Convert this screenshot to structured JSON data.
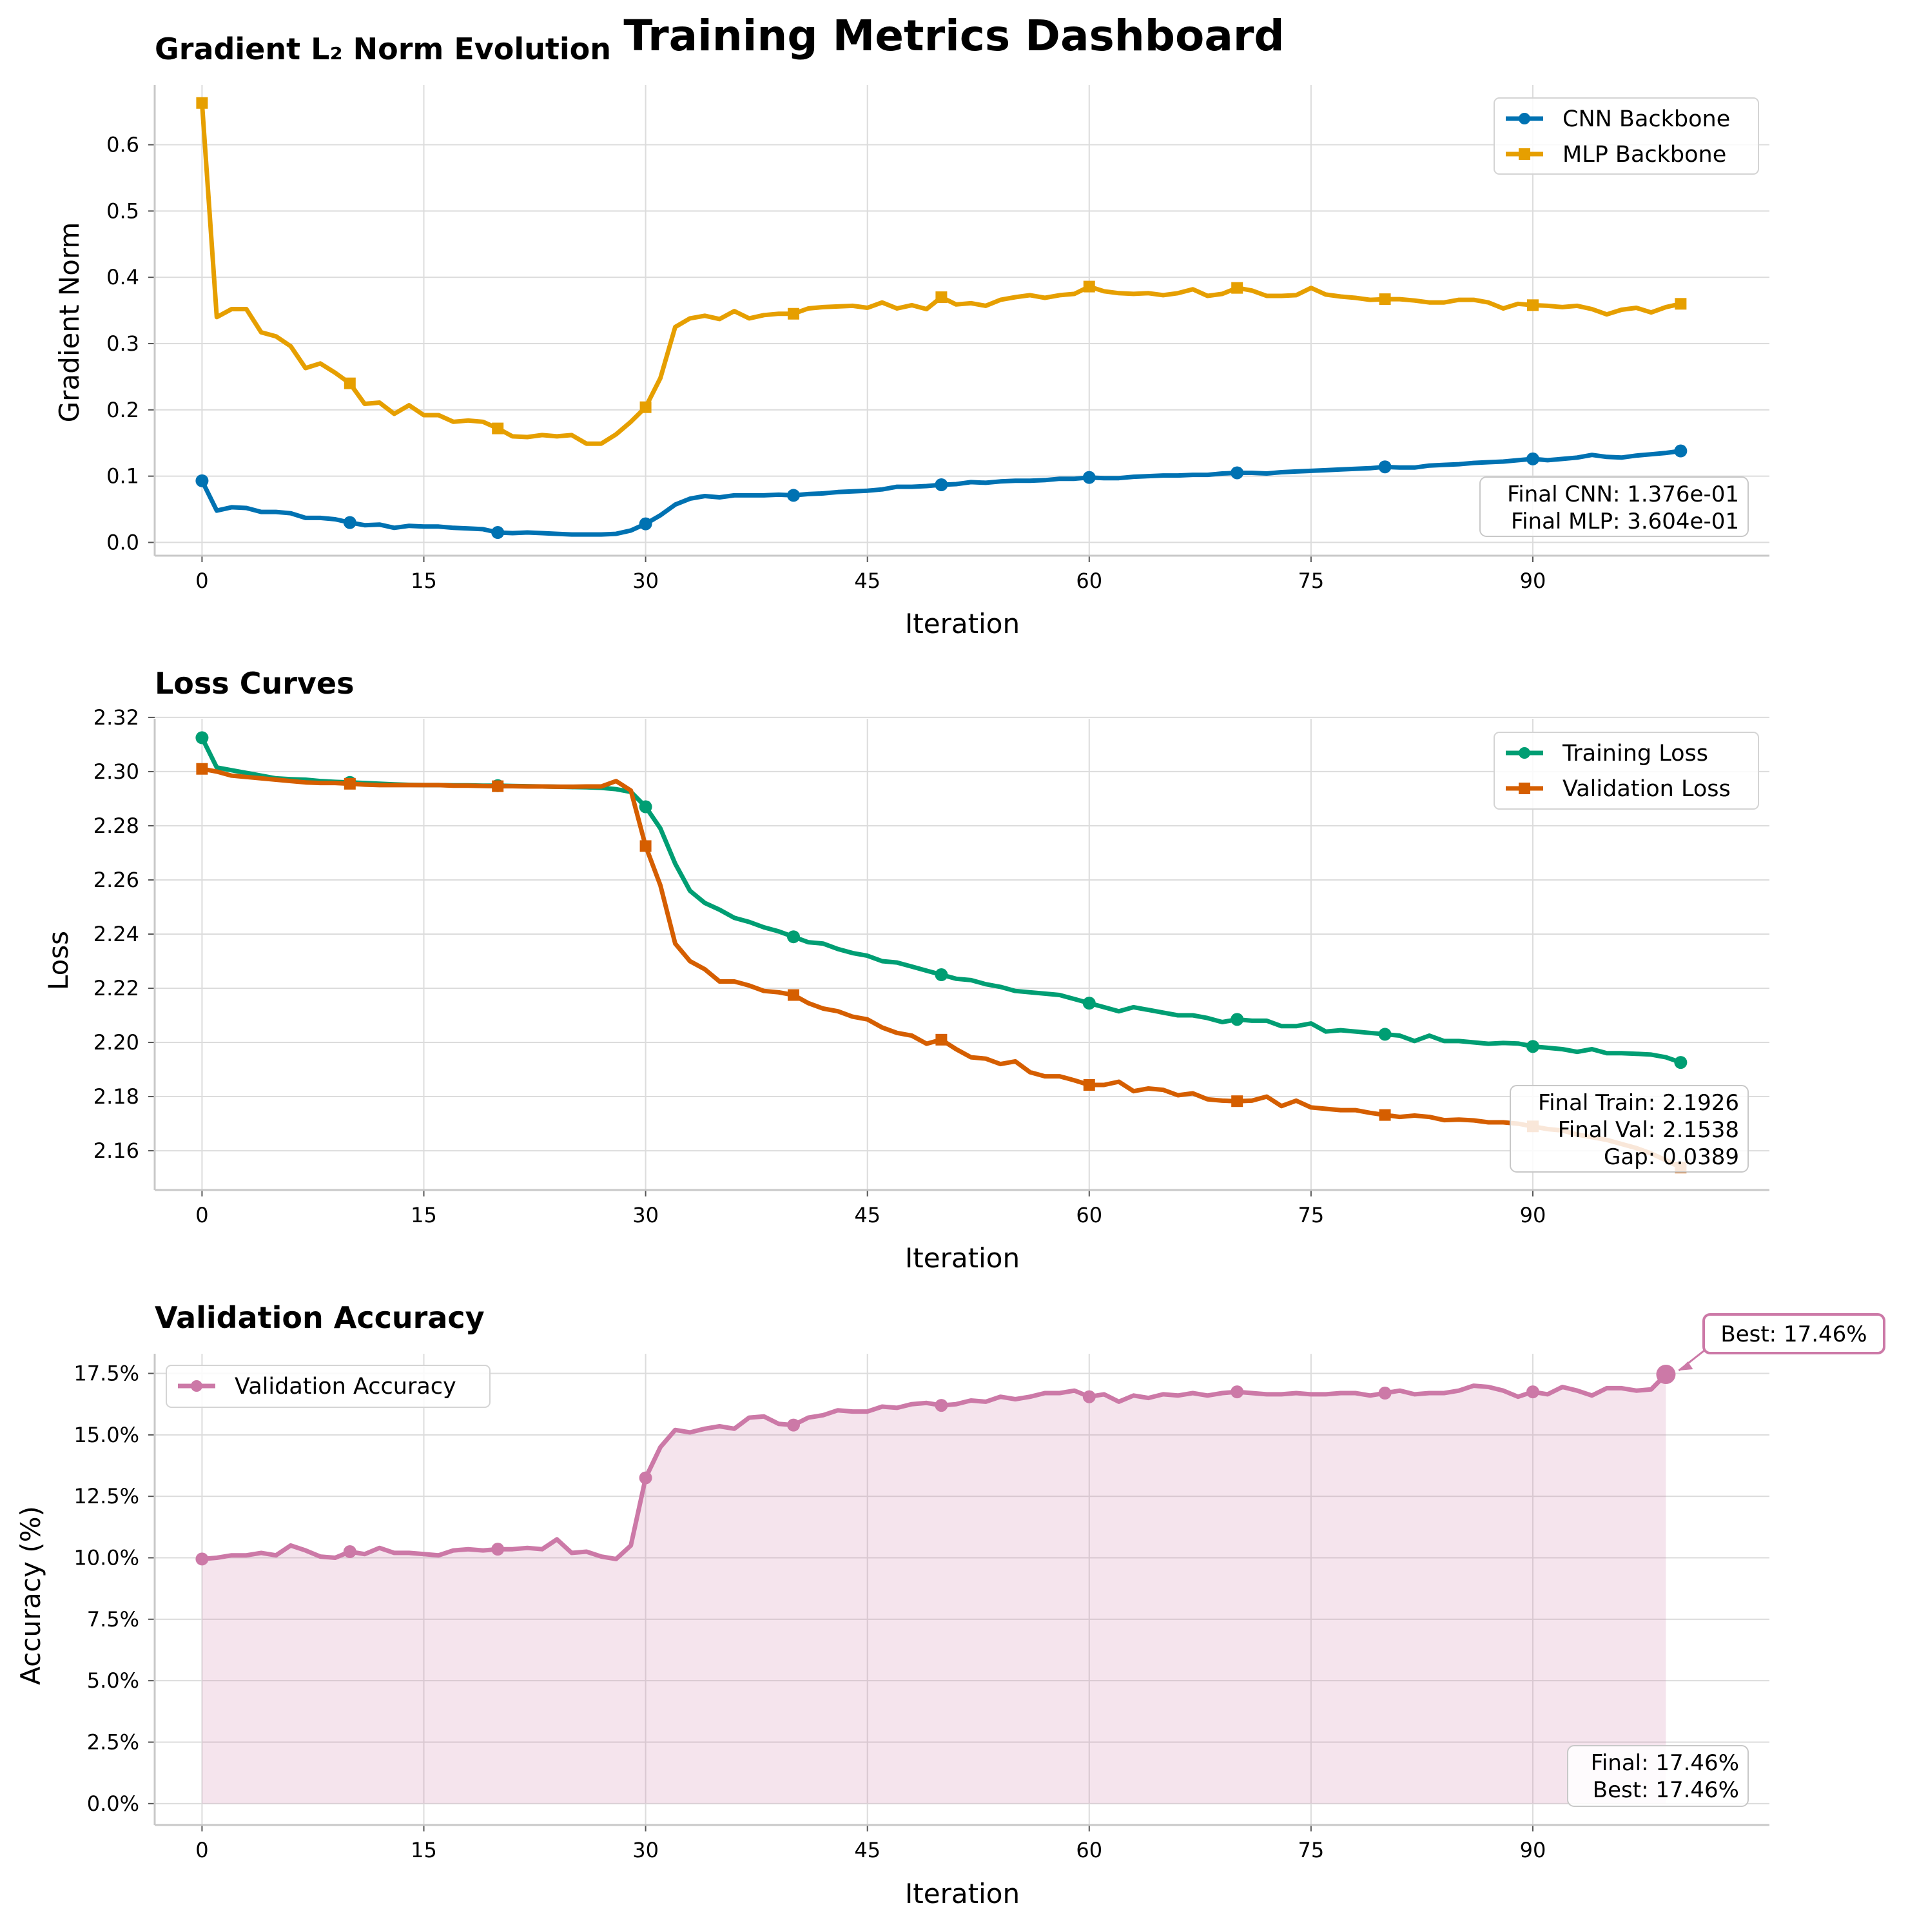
{
  "suptitle": "Training Metrics Dashboard",
  "chart_data": [
    {
      "type": "line",
      "title": "Gradient L₂ Norm Evolution",
      "xlabel": "Iteration",
      "ylabel": "Gradient Norm",
      "xlim": [
        -3.2,
        106
      ],
      "ylim": [
        -0.02,
        0.69
      ],
      "xticks": [
        0,
        15,
        30,
        45,
        60,
        75,
        90
      ],
      "xtick_labels": [
        "0",
        "15",
        "30",
        "45",
        "60",
        "75",
        "90"
      ],
      "yticks": [
        0.0,
        0.1,
        0.2,
        0.3,
        0.4,
        0.5,
        0.6
      ],
      "ytick_labels": [
        "0.0",
        "0.1",
        "0.2",
        "0.3",
        "0.4",
        "0.5",
        "0.6"
      ],
      "grid": true,
      "legend": "upper right",
      "series": [
        {
          "name": "CNN Backbone",
          "color": "#0072b2",
          "marker": "circle",
          "marker_every": 10,
          "values": [
            0.093,
            0.048,
            0.053,
            0.052,
            0.046,
            0.046,
            0.044,
            0.037,
            0.037,
            0.035,
            0.03,
            0.026,
            0.027,
            0.022,
            0.025,
            0.024,
            0.024,
            0.022,
            0.021,
            0.02,
            0.015,
            0.014,
            0.015,
            0.014,
            0.013,
            0.012,
            0.012,
            0.012,
            0.013,
            0.018,
            0.028,
            0.041,
            0.057,
            0.066,
            0.07,
            0.068,
            0.071,
            0.071,
            0.071,
            0.072,
            0.071,
            0.073,
            0.074,
            0.076,
            0.077,
            0.078,
            0.08,
            0.084,
            0.084,
            0.085,
            0.087,
            0.088,
            0.091,
            0.09,
            0.092,
            0.093,
            0.093,
            0.094,
            0.096,
            0.096,
            0.098,
            0.097,
            0.097,
            0.099,
            0.1,
            0.101,
            0.101,
            0.102,
            0.102,
            0.104,
            0.105,
            0.105,
            0.104,
            0.106,
            0.107,
            0.108,
            0.109,
            0.11,
            0.111,
            0.112,
            0.114,
            0.113,
            0.113,
            0.116,
            0.117,
            0.118,
            0.12,
            0.121,
            0.122,
            0.124,
            0.126,
            0.124,
            0.126,
            0.128,
            0.132,
            0.129,
            0.128,
            0.131,
            0.133,
            0.135,
            0.138
          ]
        },
        {
          "name": "MLP Backbone",
          "color": "#e69f00",
          "marker": "square",
          "marker_every": 10,
          "values": [
            0.663,
            0.34,
            0.352,
            0.352,
            0.317,
            0.311,
            0.296,
            0.263,
            0.27,
            0.256,
            0.24,
            0.209,
            0.211,
            0.194,
            0.207,
            0.192,
            0.192,
            0.182,
            0.184,
            0.182,
            0.172,
            0.16,
            0.159,
            0.162,
            0.16,
            0.162,
            0.149,
            0.149,
            0.163,
            0.182,
            0.204,
            0.248,
            0.325,
            0.338,
            0.342,
            0.337,
            0.349,
            0.338,
            0.343,
            0.345,
            0.345,
            0.353,
            0.355,
            0.356,
            0.357,
            0.354,
            0.362,
            0.353,
            0.358,
            0.352,
            0.37,
            0.359,
            0.361,
            0.357,
            0.366,
            0.37,
            0.373,
            0.369,
            0.373,
            0.375,
            0.386,
            0.379,
            0.376,
            0.375,
            0.376,
            0.373,
            0.376,
            0.382,
            0.372,
            0.375,
            0.384,
            0.38,
            0.372,
            0.372,
            0.373,
            0.384,
            0.374,
            0.371,
            0.369,
            0.366,
            0.367,
            0.367,
            0.365,
            0.362,
            0.362,
            0.366,
            0.366,
            0.362,
            0.353,
            0.36,
            0.358,
            0.357,
            0.355,
            0.357,
            0.352,
            0.344,
            0.351,
            0.354,
            0.347,
            0.355,
            0.36
          ]
        }
      ],
      "annotation": [
        "Final CNN: 1.376e-01",
        "Final MLP: 3.604e-01"
      ]
    },
    {
      "type": "line",
      "title": "Loss Curves",
      "xlabel": "Iteration",
      "ylabel": "Loss",
      "xlim": [
        -3.2,
        106
      ],
      "ylim": [
        2.1455,
        2.3195
      ],
      "xticks": [
        0,
        15,
        30,
        45,
        60,
        75,
        90
      ],
      "xtick_labels": [
        "0",
        "15",
        "30",
        "45",
        "60",
        "75",
        "90"
      ],
      "yticks": [
        2.16,
        2.18,
        2.2,
        2.22,
        2.24,
        2.26,
        2.28,
        2.3,
        2.32
      ],
      "ytick_labels": [
        "2.16",
        "2.18",
        "2.20",
        "2.22",
        "2.24",
        "2.26",
        "2.28",
        "2.30",
        "2.32"
      ],
      "grid": true,
      "legend": "upper right",
      "series": [
        {
          "name": "Training Loss",
          "color": "#009e73",
          "marker": "circle",
          "marker_every": 10,
          "values": [
            2.3125,
            2.3015,
            2.3005,
            2.2995,
            2.2985,
            2.2975,
            2.2972,
            2.297,
            2.2965,
            2.2962,
            2.296,
            2.2958,
            2.2955,
            2.2953,
            2.2951,
            2.295,
            2.295,
            2.2949,
            2.2949,
            2.2948,
            2.2948,
            2.2947,
            2.2946,
            2.2945,
            2.2944,
            2.2943,
            2.2942,
            2.294,
            2.2935,
            2.2925,
            2.287,
            2.279,
            2.266,
            2.256,
            2.2515,
            2.249,
            2.246,
            2.2445,
            2.2425,
            2.241,
            2.239,
            2.237,
            2.2365,
            2.2345,
            2.233,
            2.232,
            2.23,
            2.2295,
            2.228,
            2.2265,
            2.225,
            2.2235,
            2.223,
            2.2215,
            2.2205,
            2.219,
            2.2185,
            2.218,
            2.2175,
            2.216,
            2.2145,
            2.213,
            2.2115,
            2.213,
            2.212,
            2.211,
            2.21,
            2.21,
            2.209,
            2.2075,
            2.2085,
            2.208,
            2.208,
            2.206,
            2.206,
            2.207,
            2.204,
            2.2045,
            2.204,
            2.2035,
            2.203,
            2.2025,
            2.2005,
            2.2025,
            2.2005,
            2.2005,
            2.2,
            2.1995,
            2.1998,
            2.1996,
            2.1985,
            2.198,
            2.1975,
            2.1965,
            2.1975,
            2.196,
            2.196,
            2.1958,
            2.1955,
            2.1945,
            2.1926
          ]
        },
        {
          "name": "Validation Loss",
          "color": "#d55e00",
          "marker": "square",
          "marker_every": 10,
          "values": [
            2.301,
            2.3,
            2.2985,
            2.298,
            2.2975,
            2.297,
            2.2965,
            2.296,
            2.2958,
            2.2958,
            2.2955,
            2.2952,
            2.295,
            2.295,
            2.295,
            2.295,
            2.295,
            2.2948,
            2.2948,
            2.2947,
            2.2946,
            2.2946,
            2.2945,
            2.2945,
            2.2944,
            2.2944,
            2.2945,
            2.2945,
            2.2965,
            2.293,
            2.2725,
            2.258,
            2.2365,
            2.23,
            2.227,
            2.2225,
            2.2225,
            2.221,
            2.219,
            2.2185,
            2.2175,
            2.2145,
            2.2125,
            2.2115,
            2.2095,
            2.2085,
            2.2055,
            2.2035,
            2.2025,
            2.1995,
            2.201,
            2.1975,
            2.1945,
            2.194,
            2.192,
            2.193,
            2.189,
            2.1875,
            2.1875,
            2.186,
            2.1843,
            2.1843,
            2.1855,
            2.182,
            2.183,
            2.1825,
            2.1805,
            2.1812,
            2.179,
            2.1785,
            2.1783,
            2.1785,
            2.18,
            2.1765,
            2.1785,
            2.176,
            2.1755,
            2.175,
            2.175,
            2.174,
            2.1732,
            2.1725,
            2.173,
            2.1725,
            2.1713,
            2.1715,
            2.1712,
            2.1705,
            2.1705,
            2.17,
            2.169,
            2.168,
            2.1675,
            2.166,
            2.165,
            2.164,
            2.1625,
            2.161,
            2.159,
            2.1565,
            2.1538
          ]
        }
      ],
      "annotation": [
        "Final Train: 2.1926",
        "Final Val: 2.1538",
        "Gap: 0.0389"
      ]
    },
    {
      "type": "area",
      "title": "Validation Accuracy",
      "xlabel": "Iteration",
      "ylabel": "Accuracy (%)",
      "xlim": [
        -3.2,
        106
      ],
      "ylim": [
        -0.87,
        18.3
      ],
      "xticks": [
        0,
        15,
        30,
        45,
        60,
        75,
        90
      ],
      "xtick_labels": [
        "0",
        "15",
        "30",
        "45",
        "60",
        "75",
        "90"
      ],
      "yticks": [
        0.0,
        2.5,
        5.0,
        7.5,
        10.0,
        12.5,
        15.0,
        17.5
      ],
      "ytick_labels": [
        "0.0%",
        "2.5%",
        "5.0%",
        "7.5%",
        "10.0%",
        "12.5%",
        "15.0%",
        "17.5%"
      ],
      "grid": true,
      "legend": "upper left",
      "series": [
        {
          "name": "Validation Accuracy",
          "color": "#cc79a7",
          "marker": "circle",
          "marker_every": 10,
          "values": [
            9.95,
            10.0,
            10.1,
            10.1,
            10.2,
            10.1,
            10.5,
            10.3,
            10.05,
            10.0,
            10.25,
            10.15,
            10.4,
            10.2,
            10.2,
            10.15,
            10.1,
            10.3,
            10.35,
            10.3,
            10.35,
            10.35,
            10.4,
            10.35,
            10.75,
            10.2,
            10.25,
            10.05,
            9.95,
            10.5,
            13.25,
            14.5,
            15.2,
            15.1,
            15.25,
            15.35,
            15.25,
            15.7,
            15.75,
            15.45,
            15.4,
            15.7,
            15.8,
            16.0,
            15.95,
            15.95,
            16.15,
            16.1,
            16.25,
            16.3,
            16.2,
            16.25,
            16.4,
            16.35,
            16.55,
            16.45,
            16.55,
            16.7,
            16.7,
            16.8,
            16.55,
            16.65,
            16.35,
            16.6,
            16.5,
            16.65,
            16.6,
            16.7,
            16.6,
            16.7,
            16.75,
            16.7,
            16.65,
            16.65,
            16.7,
            16.65,
            16.65,
            16.7,
            16.7,
            16.6,
            16.7,
            16.8,
            16.65,
            16.7,
            16.7,
            16.8,
            17.0,
            16.95,
            16.8,
            16.55,
            16.75,
            16.65,
            16.95,
            16.8,
            16.6,
            16.9,
            16.9,
            16.8,
            16.85,
            17.46
          ]
        }
      ],
      "best_marker": {
        "x": 99,
        "y": 17.46,
        "label": "Best: 17.46%"
      },
      "annotation": [
        "Final: 17.46%",
        "Best: 17.46%"
      ]
    }
  ]
}
